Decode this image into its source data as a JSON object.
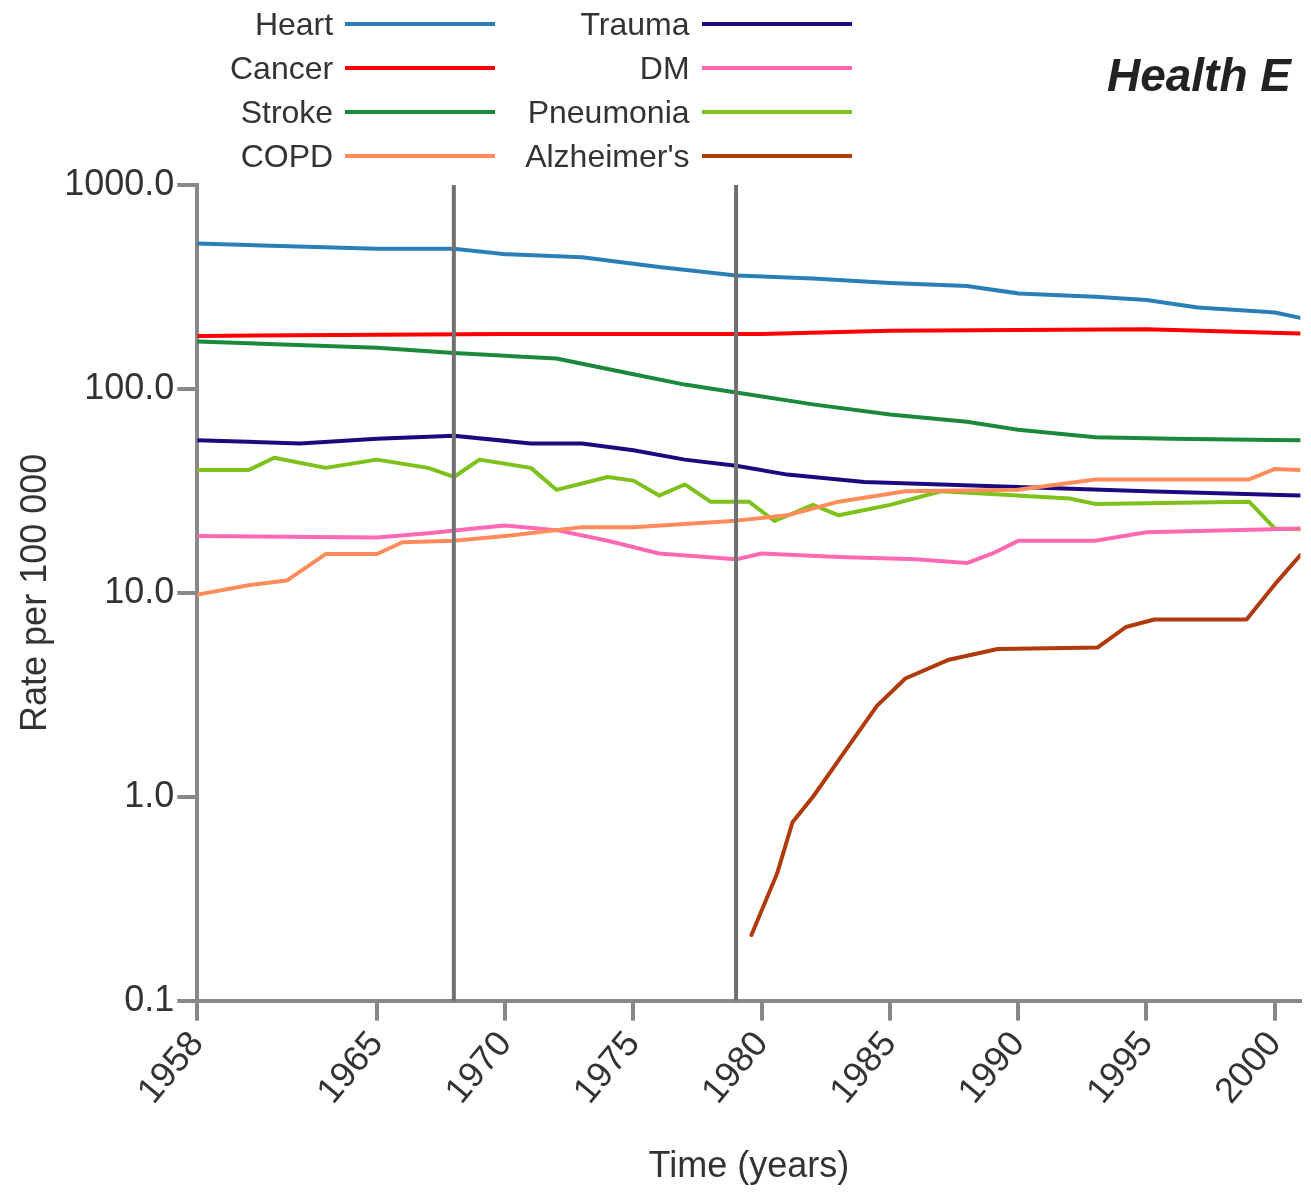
{
  "chart_data": {
    "type": "line",
    "title": "Health E",
    "xlabel": "Time (years)",
    "ylabel": "Rate per 100 000",
    "log": true,
    "grid": false,
    "legend": "top left",
    "marker": "none",
    "line_style": "solid",
    "xlim": [
      1958,
      2001
    ],
    "xticks": [
      1958,
      1965,
      1970,
      1975,
      1980,
      1985,
      1990,
      1995,
      2000
    ],
    "ylim": [
      0.1,
      1000
    ],
    "yticks": [
      {
        "value": 0.1,
        "label": "0.1"
      },
      {
        "value": 1,
        "label": "1.0"
      },
      {
        "value": 10,
        "label": "10.0"
      },
      {
        "value": 100,
        "label": "100.0"
      },
      {
        "value": 1000,
        "label": "1000.0"
      }
    ],
    "ref_lines": [
      {
        "axis": "x",
        "value": 1968,
        "color": "#707070"
      },
      {
        "axis": "x",
        "value": 1979,
        "color": "#707070"
      }
    ],
    "series": [
      {
        "name": "Heart",
        "color": "#2a7fb8",
        "x": [
          1958,
          1965,
          1968,
          1970,
          1973,
          1976,
          1979,
          1982,
          1985,
          1988,
          1990,
          1993,
          1995,
          1997,
          2000,
          2001
        ],
        "values": [
          516,
          487,
          487,
          458,
          442,
          396,
          360,
          348,
          331,
          320,
          294,
          283,
          273,
          251,
          237,
          223
        ]
      },
      {
        "name": "Cancer",
        "color": "#ff0000",
        "x": [
          1958,
          1970,
          1980,
          1985,
          1995,
          2001
        ],
        "values": [
          182,
          186,
          186,
          193,
          196,
          187
        ]
      },
      {
        "name": "Stroke",
        "color": "#1a8a3a",
        "x": [
          1958,
          1965,
          1968,
          1972,
          1975,
          1977,
          1979,
          1982,
          1985,
          1988,
          1990,
          1993,
          1996,
          2001
        ],
        "values": [
          171,
          159,
          150,
          141,
          118,
          105,
          96,
          84,
          75,
          69,
          63,
          58,
          57,
          56
        ]
      },
      {
        "name": "COPD",
        "color": "#ff8c5a",
        "x": [
          1958,
          1960,
          1961.5,
          1963,
          1965,
          1966,
          1968,
          1970,
          1973,
          1975,
          1979,
          1981,
          1983,
          1985.6,
          1990,
          1993,
          1999,
          2000,
          2001
        ],
        "values": [
          9.8,
          10.9,
          11.5,
          15.5,
          15.5,
          17.7,
          18,
          19,
          21,
          21,
          22.6,
          24,
          28,
          31.5,
          32,
          36,
          36,
          40.5,
          40
        ]
      },
      {
        "name": "Trauma",
        "color": "#1a0a80",
        "x": [
          1958,
          1962,
          1965,
          1968,
          1971,
          1973,
          1975,
          1977,
          1979,
          1981,
          1984,
          1990,
          1995,
          2001
        ],
        "values": [
          56,
          54,
          57,
          59,
          54,
          54,
          50,
          45,
          42,
          38,
          35,
          33,
          31.5,
          30
        ]
      },
      {
        "name": "DM",
        "color": "#ff69b4",
        "x": [
          1958,
          1965,
          1967,
          1968.5,
          1970,
          1972,
          1974,
          1976,
          1979,
          1980,
          1983,
          1986,
          1988,
          1989,
          1990,
          1993,
          1995,
          2001
        ],
        "values": [
          19,
          18.7,
          19.6,
          20.5,
          21.4,
          20.3,
          18,
          15.6,
          14.6,
          15.6,
          15,
          14.6,
          14,
          15.6,
          18,
          18,
          19.8,
          20.7
        ]
      },
      {
        "name": "Pneumonia",
        "color": "#7cc21a",
        "x": [
          1958,
          1960,
          1961,
          1963,
          1965,
          1967,
          1968,
          1969,
          1971,
          1972,
          1974,
          1975,
          1976,
          1977,
          1978,
          1979.5,
          1980.5,
          1982,
          1983,
          1985,
          1987,
          1992,
          1993,
          1999,
          2000,
          2001
        ],
        "values": [
          40,
          40,
          46,
          41,
          45,
          41,
          37,
          45,
          41,
          32,
          37,
          35.5,
          30,
          34,
          28,
          28,
          22.5,
          27,
          24,
          27,
          31.5,
          29,
          27.3,
          28,
          20.7,
          20.5
        ]
      },
      {
        "name": "Alzheimer's",
        "color": "#b03a0a",
        "x": [
          1979.6,
          1980.6,
          1981.2,
          1982,
          1983.2,
          1984.5,
          1985.6,
          1987.3,
          1989.2,
          1993.1,
          1994.2,
          1995.3,
          1998.9,
          2000,
          2001
        ],
        "values": [
          0.21,
          0.42,
          0.75,
          1.0,
          1.64,
          2.8,
          3.8,
          4.7,
          5.3,
          5.4,
          6.8,
          7.4,
          7.4,
          11,
          15.3
        ]
      }
    ]
  }
}
